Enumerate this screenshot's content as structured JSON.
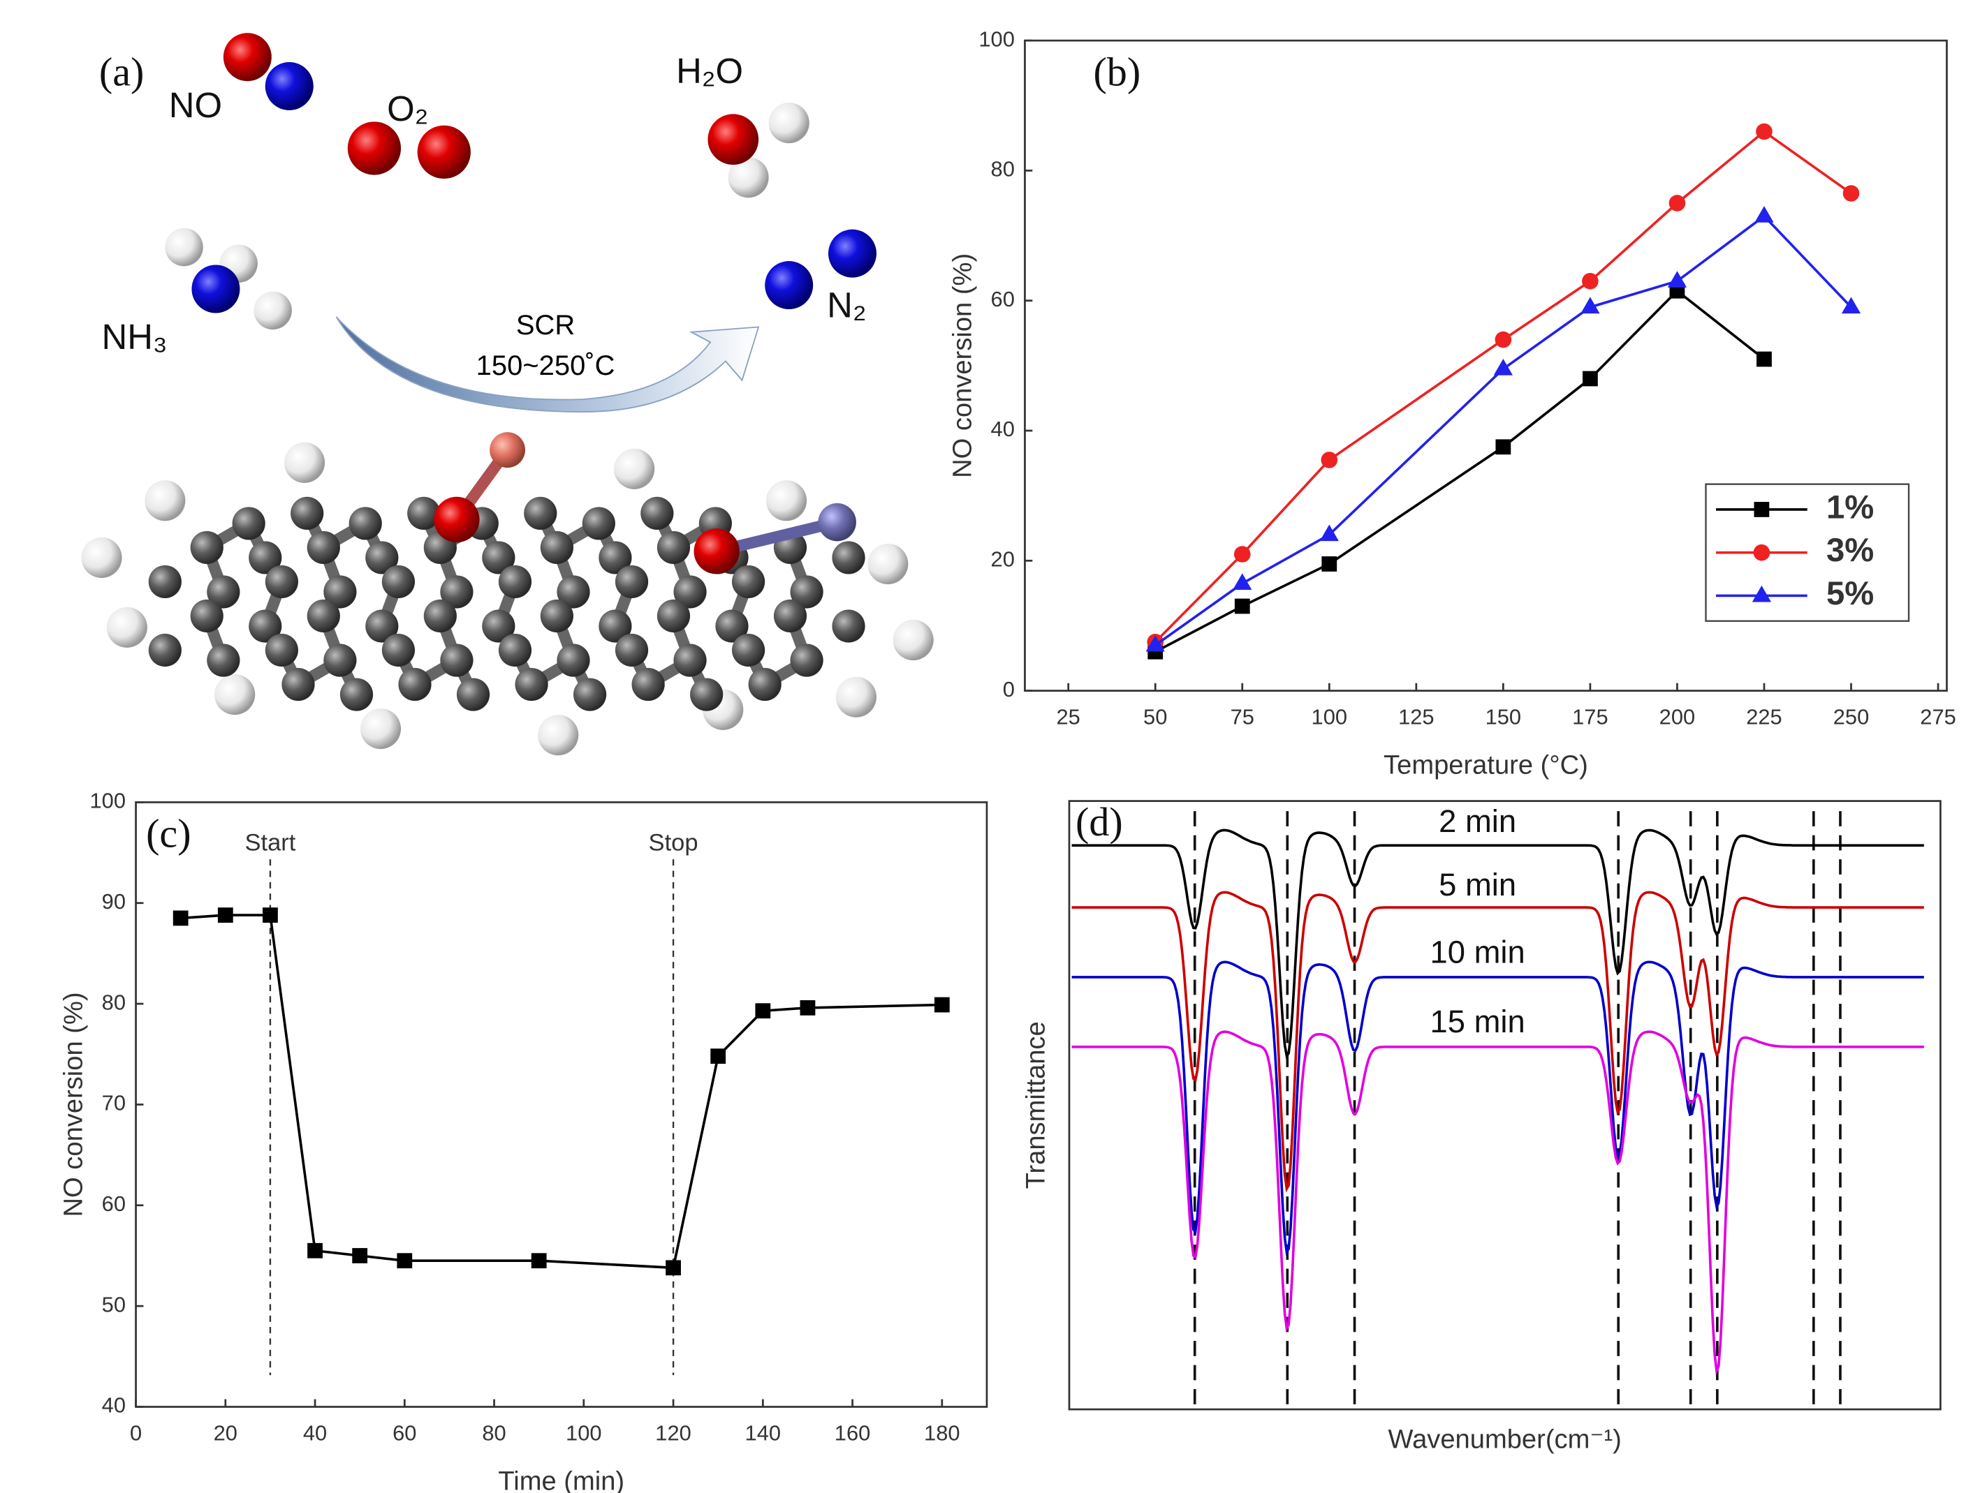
{
  "diagram": {
    "label": "(a)",
    "molecules": [
      "NO",
      "O₂",
      "H₂O",
      "NH₃",
      "N₂"
    ],
    "arrow_label": [
      "SCR",
      "150~250˚C"
    ]
  },
  "chart_data": [
    {
      "type": "line",
      "label": "(b)",
      "xlabel": "Temperature (°C)",
      "ylabel": "NO conversion (%)",
      "xlim": [
        12.5,
        277.5
      ],
      "xticks": [
        25,
        50,
        75,
        100,
        125,
        150,
        175,
        200,
        225,
        250,
        275
      ],
      "ylim": [
        0,
        100
      ],
      "yticks": [
        0,
        20,
        40,
        60,
        80,
        100
      ],
      "legend": "lower right",
      "series": [
        {
          "name": "1%",
          "color": "#000000",
          "marker": "square",
          "x": [
            50,
            75,
            100,
            150,
            175,
            200,
            225
          ],
          "values": [
            6,
            13,
            19.5,
            37.5,
            48,
            61.5,
            51
          ]
        },
        {
          "name": "3%",
          "color": "#ee2222",
          "marker": "circle",
          "x": [
            50,
            75,
            100,
            150,
            175,
            200,
            225,
            250
          ],
          "values": [
            7.5,
            21,
            35.5,
            54,
            63,
            75,
            86,
            76.5
          ]
        },
        {
          "name": "5%",
          "color": "#2222ee",
          "marker": "triangle",
          "x": [
            50,
            75,
            100,
            150,
            175,
            200,
            225,
            250
          ],
          "values": [
            7,
            16.5,
            24,
            49.5,
            59,
            63,
            73,
            59
          ]
        }
      ]
    },
    {
      "type": "line",
      "label": "(c)",
      "xlabel": "Time (min)",
      "ylabel": "NO conversion (%)",
      "xlim": [
        0,
        190
      ],
      "xticks": [
        0,
        20,
        40,
        60,
        80,
        100,
        120,
        140,
        160,
        180
      ],
      "ylim": [
        40,
        100
      ],
      "yticks": [
        40,
        50,
        60,
        70,
        80,
        90,
        100
      ],
      "annotations": [
        {
          "text": "Start",
          "x": 30
        },
        {
          "text": "Stop",
          "x": 120
        }
      ],
      "series": [
        {
          "color": "#000000",
          "marker": "square",
          "x": [
            10,
            20,
            30,
            40,
            50,
            60,
            90,
            120,
            130,
            140,
            150,
            180
          ],
          "values": [
            88.5,
            88.8,
            88.8,
            55.5,
            55,
            54.5,
            54.5,
            53.8,
            74.8,
            79.3,
            79.6,
            79.9
          ]
        }
      ]
    },
    {
      "type": "spectra",
      "label": "(d)",
      "xlabel": "Wavenumber(cm⁻¹)",
      "ylabel": "Transmittance",
      "series": [
        {
          "name": "2 min",
          "color": "#000000"
        },
        {
          "name": "5 min",
          "color": "#cc0000"
        },
        {
          "name": "10 min",
          "color": "#0000cc"
        },
        {
          "name": "15 min",
          "color": "#e000e0"
        }
      ]
    }
  ]
}
